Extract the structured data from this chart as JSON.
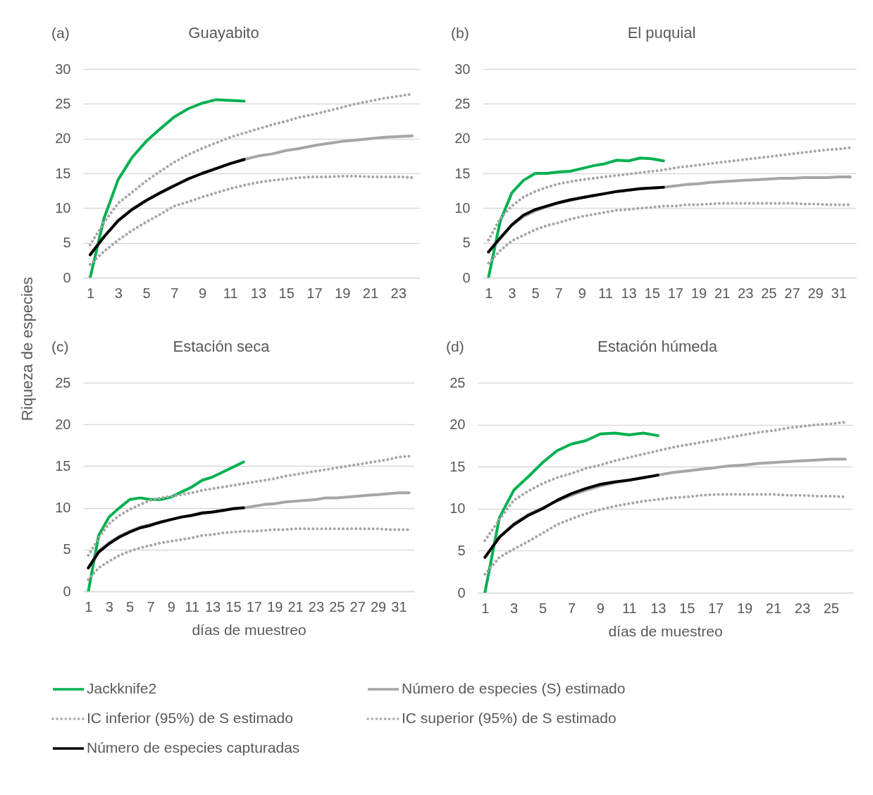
{
  "chart_data": [
    {
      "type": "line",
      "title": "Guayabito",
      "annotations": [
        "(a)"
      ],
      "ylabel": "Riqueza de especies",
      "xlim": [
        0.5,
        24.5
      ],
      "xticks": [
        1,
        3,
        5,
        7,
        9,
        11,
        13,
        15,
        17,
        19,
        21,
        23
      ],
      "ylim": [
        0,
        30
      ],
      "yticks": [
        0,
        5,
        10,
        15,
        20,
        25,
        30
      ],
      "grid": "y",
      "legend": "bottom",
      "x": [
        1,
        2,
        3,
        4,
        5,
        6,
        7,
        8,
        9,
        10,
        11,
        12,
        13,
        14,
        15,
        16,
        17,
        18,
        19,
        20,
        21,
        22,
        23,
        24
      ],
      "series": [
        {
          "name": "Jackknife2",
          "color": "#00b050",
          "x": [
            1,
            2,
            3,
            4,
            5,
            6,
            7,
            8,
            9,
            10,
            11,
            12
          ],
          "values": [
            0,
            8.6,
            14.1,
            17.3,
            19.6,
            21.4,
            23.1,
            24.3,
            25.1,
            25.6,
            25.5,
            25.4
          ]
        },
        {
          "name": "Número de especies (S) estimado",
          "color": "#a6a6a6",
          "values": [
            3.3,
            5.9,
            8.2,
            9.9,
            11.1,
            12.2,
            13.3,
            14.2,
            15.0,
            15.7,
            16.4,
            17.0,
            17.5,
            17.8,
            18.3,
            18.6,
            19.0,
            19.3,
            19.6,
            19.8,
            20.0,
            20.2,
            20.3,
            20.4
          ]
        },
        {
          "name": "IC inferior (95%) de S estimado",
          "color": "#a6a6a6",
          "line_style": "dotted",
          "values": [
            1.9,
            3.8,
            5.4,
            6.8,
            8.0,
            9.1,
            10.3,
            10.9,
            11.6,
            12.2,
            12.8,
            13.3,
            13.7,
            14.0,
            14.2,
            14.4,
            14.5,
            14.5,
            14.6,
            14.6,
            14.5,
            14.5,
            14.5,
            14.4
          ]
        },
        {
          "name": "IC superior (95%) de S estimado",
          "color": "#a6a6a6",
          "line_style": "dotted",
          "values": [
            4.7,
            8.0,
            10.7,
            12.3,
            13.9,
            15.3,
            16.6,
            17.7,
            18.6,
            19.4,
            20.2,
            20.8,
            21.4,
            22.0,
            22.5,
            23.1,
            23.5,
            24.0,
            24.5,
            25.0,
            25.4,
            25.8,
            26.1,
            26.4
          ]
        },
        {
          "name": "Número de especies capturadas",
          "color": "#000000",
          "x": [
            1,
            2,
            3,
            4,
            5,
            6,
            7,
            8,
            9,
            10,
            11,
            12
          ],
          "values": [
            3.3,
            5.9,
            8.2,
            9.8,
            11.1,
            12.2,
            13.2,
            14.2,
            15.0,
            15.7,
            16.4,
            17.0
          ]
        }
      ]
    },
    {
      "type": "line",
      "title": "El puquial",
      "annotations": [
        "(b)"
      ],
      "xlim": [
        0.5,
        32.5
      ],
      "xticks": [
        1,
        3,
        5,
        7,
        9,
        11,
        13,
        15,
        17,
        19,
        21,
        23,
        25,
        27,
        29,
        31
      ],
      "ylim": [
        0,
        30
      ],
      "yticks": [
        0,
        5,
        10,
        15,
        20,
        25,
        30
      ],
      "grid": "y",
      "legend": "bottom",
      "x": [
        1,
        2,
        3,
        4,
        5,
        6,
        7,
        8,
        9,
        10,
        11,
        12,
        13,
        14,
        15,
        16,
        17,
        18,
        19,
        20,
        21,
        22,
        23,
        24,
        25,
        26,
        27,
        28,
        29,
        30,
        31,
        32
      ],
      "series": [
        {
          "name": "Jackknife2",
          "color": "#00b050",
          "x": [
            1,
            2,
            3,
            4,
            5,
            6,
            7,
            8,
            9,
            10,
            11,
            12,
            13,
            14,
            15,
            16
          ],
          "values": [
            0,
            8.1,
            12.2,
            14.0,
            15.0,
            15.0,
            15.2,
            15.3,
            15.7,
            16.1,
            16.4,
            16.9,
            16.8,
            17.2,
            17.1,
            16.8
          ]
        },
        {
          "name": "Número de especies (S) estimado",
          "color": "#a6a6a6",
          "values": [
            3.7,
            5.6,
            7.5,
            8.8,
            9.6,
            10.2,
            10.7,
            11.1,
            11.5,
            11.8,
            12.1,
            12.4,
            12.6,
            12.8,
            12.9,
            13.0,
            13.2,
            13.4,
            13.5,
            13.7,
            13.8,
            13.9,
            14.0,
            14.1,
            14.2,
            14.3,
            14.3,
            14.4,
            14.4,
            14.4,
            14.5,
            14.5
          ]
        },
        {
          "name": "IC inferior (95%) de S estimado",
          "color": "#a6a6a6",
          "line_style": "dotted",
          "values": [
            2.1,
            3.9,
            5.3,
            6.1,
            6.9,
            7.5,
            7.9,
            8.4,
            8.8,
            9.1,
            9.4,
            9.7,
            9.8,
            10.0,
            10.1,
            10.3,
            10.3,
            10.5,
            10.5,
            10.6,
            10.7,
            10.7,
            10.7,
            10.7,
            10.7,
            10.7,
            10.7,
            10.6,
            10.6,
            10.5,
            10.5,
            10.5
          ]
        },
        {
          "name": "IC superior (95%) de S estimado",
          "color": "#a6a6a6",
          "line_style": "dotted",
          "values": [
            5.4,
            8.5,
            10.3,
            11.6,
            12.4,
            13.0,
            13.5,
            13.8,
            14.1,
            14.3,
            14.5,
            14.7,
            14.9,
            15.1,
            15.3,
            15.5,
            15.8,
            16.0,
            16.2,
            16.4,
            16.6,
            16.8,
            17.0,
            17.2,
            17.4,
            17.6,
            17.8,
            18.0,
            18.2,
            18.4,
            18.5,
            18.7
          ]
        },
        {
          "name": "Número de especies capturadas",
          "color": "#000000",
          "x": [
            1,
            2,
            3,
            4,
            5,
            6,
            7,
            8,
            9,
            10,
            11,
            12,
            13,
            14,
            15,
            16
          ],
          "values": [
            3.7,
            5.7,
            7.6,
            9.0,
            9.8,
            10.3,
            10.8,
            11.2,
            11.5,
            11.8,
            12.1,
            12.4,
            12.6,
            12.8,
            12.9,
            13.0
          ]
        }
      ]
    },
    {
      "type": "line",
      "title": "Estación seca",
      "annotations": [
        "(c)"
      ],
      "xlabel": "días de muestreo",
      "xlim": [
        0.5,
        32.5
      ],
      "xticks": [
        1,
        3,
        5,
        7,
        9,
        11,
        13,
        15,
        17,
        19,
        21,
        23,
        25,
        27,
        29,
        31
      ],
      "ylim": [
        0,
        25
      ],
      "yticks": [
        0,
        5,
        10,
        15,
        20,
        25
      ],
      "grid": "y",
      "legend": "bottom",
      "x": [
        1,
        2,
        3,
        4,
        5,
        6,
        7,
        8,
        9,
        10,
        11,
        12,
        13,
        14,
        15,
        16,
        17,
        18,
        19,
        20,
        21,
        22,
        23,
        24,
        25,
        26,
        27,
        28,
        29,
        30,
        31,
        32
      ],
      "series": [
        {
          "name": "Jackknife2",
          "color": "#00b050",
          "x": [
            1,
            2,
            3,
            4,
            5,
            6,
            7,
            8,
            9,
            10,
            11,
            12,
            13,
            14,
            15,
            16
          ],
          "values": [
            0,
            6.7,
            8.9,
            10.0,
            11.0,
            11.2,
            11.0,
            11.0,
            11.3,
            11.9,
            12.5,
            13.3,
            13.7,
            14.3,
            14.9,
            15.5
          ]
        },
        {
          "name": "Número de especies (S) estimado",
          "color": "#a6a6a6",
          "values": [
            2.8,
            4.8,
            5.8,
            6.6,
            7.2,
            7.7,
            8.0,
            8.3,
            8.6,
            8.9,
            9.1,
            9.3,
            9.5,
            9.7,
            9.9,
            10.0,
            10.2,
            10.4,
            10.5,
            10.7,
            10.8,
            10.9,
            11.0,
            11.2,
            11.2,
            11.3,
            11.4,
            11.5,
            11.6,
            11.7,
            11.8,
            11.8
          ]
        },
        {
          "name": "IC inferior (95%) de S estimado",
          "color": "#a6a6a6",
          "line_style": "dotted",
          "values": [
            1.4,
            2.8,
            3.6,
            4.3,
            4.8,
            5.2,
            5.5,
            5.8,
            6.0,
            6.2,
            6.4,
            6.7,
            6.8,
            7.0,
            7.1,
            7.2,
            7.2,
            7.3,
            7.4,
            7.4,
            7.5,
            7.5,
            7.5,
            7.5,
            7.5,
            7.5,
            7.5,
            7.5,
            7.5,
            7.4,
            7.4,
            7.4
          ]
        },
        {
          "name": "IC superior (95%) de S estimado",
          "color": "#a6a6a6",
          "line_style": "dotted",
          "values": [
            4.3,
            6.4,
            8.1,
            9.1,
            9.8,
            10.4,
            10.9,
            11.2,
            11.4,
            11.6,
            11.8,
            12.1,
            12.3,
            12.5,
            12.7,
            12.9,
            13.1,
            13.3,
            13.5,
            13.8,
            14.0,
            14.2,
            14.4,
            14.6,
            14.8,
            15.0,
            15.2,
            15.4,
            15.6,
            15.8,
            16.1,
            16.2
          ]
        },
        {
          "name": "Número de especies capturadas",
          "color": "#000000",
          "x": [
            1,
            2,
            3,
            4,
            5,
            6,
            7,
            8,
            9,
            10,
            11,
            12,
            13,
            14,
            15,
            16
          ],
          "values": [
            2.8,
            4.7,
            5.7,
            6.5,
            7.1,
            7.6,
            7.9,
            8.3,
            8.6,
            8.9,
            9.1,
            9.4,
            9.5,
            9.7,
            9.9,
            10.0
          ]
        }
      ]
    },
    {
      "type": "line",
      "title": "Estación húmeda",
      "annotations": [
        "(d)"
      ],
      "xlabel": "días de muestreo",
      "xlim": [
        0.5,
        26.5
      ],
      "xticks": [
        1,
        3,
        5,
        7,
        9,
        11,
        13,
        15,
        17,
        19,
        21,
        23,
        25
      ],
      "ylim": [
        0,
        25
      ],
      "yticks": [
        0,
        5,
        10,
        15,
        20,
        25
      ],
      "grid": "y",
      "legend": "bottom",
      "x": [
        1,
        2,
        3,
        4,
        5,
        6,
        7,
        8,
        9,
        10,
        11,
        12,
        13,
        14,
        15,
        16,
        17,
        18,
        19,
        20,
        21,
        22,
        23,
        24,
        25,
        26
      ],
      "series": [
        {
          "name": "Jackknife2",
          "color": "#00b050",
          "x": [
            1,
            2,
            3,
            4,
            5,
            6,
            7,
            8,
            9,
            10,
            11,
            12,
            13
          ],
          "values": [
            0,
            8.9,
            12.2,
            13.8,
            15.5,
            16.9,
            17.7,
            18.1,
            18.9,
            19.0,
            18.8,
            19.0,
            18.7
          ]
        },
        {
          "name": "Número de especies (S) estimado",
          "color": "#a6a6a6",
          "values": [
            4.2,
            6.6,
            8.2,
            9.3,
            10.1,
            10.9,
            11.6,
            12.2,
            12.7,
            13.1,
            13.4,
            13.7,
            14.0,
            14.3,
            14.5,
            14.7,
            14.9,
            15.1,
            15.2,
            15.4,
            15.5,
            15.6,
            15.7,
            15.8,
            15.9,
            15.9
          ]
        },
        {
          "name": "IC inferior (95%) de S estimado",
          "color": "#a6a6a6",
          "line_style": "dotted",
          "values": [
            2.2,
            4.2,
            5.2,
            6.1,
            7.1,
            8.1,
            8.8,
            9.4,
            9.9,
            10.3,
            10.6,
            10.9,
            11.1,
            11.3,
            11.4,
            11.6,
            11.7,
            11.7,
            11.7,
            11.7,
            11.7,
            11.6,
            11.6,
            11.5,
            11.5,
            11.4
          ]
        },
        {
          "name": "IC superior (95%) de S estimado",
          "color": "#a6a6a6",
          "line_style": "dotted",
          "values": [
            6.2,
            8.7,
            11.0,
            12.1,
            13.0,
            13.7,
            14.2,
            14.8,
            15.2,
            15.7,
            16.1,
            16.5,
            16.9,
            17.3,
            17.6,
            17.9,
            18.2,
            18.5,
            18.8,
            19.1,
            19.3,
            19.6,
            19.8,
            20.0,
            20.1,
            20.3
          ]
        },
        {
          "name": "Número de especies capturadas",
          "color": "#000000",
          "x": [
            1,
            2,
            3,
            4,
            5,
            6,
            7,
            8,
            9,
            10,
            11,
            12,
            13
          ],
          "values": [
            4.2,
            6.6,
            8.1,
            9.2,
            10.0,
            11.0,
            11.8,
            12.4,
            12.9,
            13.2,
            13.4,
            13.7,
            14.0
          ]
        }
      ]
    }
  ]
}
